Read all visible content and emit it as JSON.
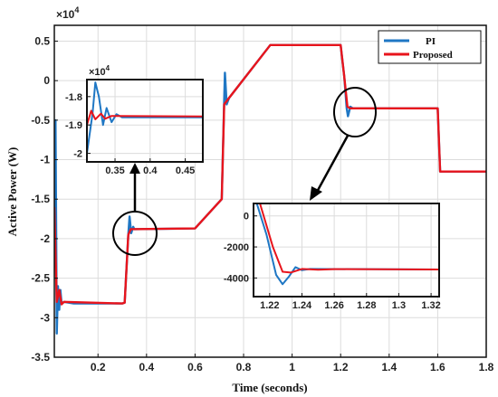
{
  "chart_data": [
    {
      "type": "line",
      "title": "",
      "xlabel": "Time (seconds)",
      "ylabel": "Active Power (W)",
      "y_multiplier": "×10",
      "y_multiplier_exp": "4",
      "xlim": [
        0.02,
        1.8
      ],
      "ylim": [
        -3.5,
        0.7
      ],
      "xticks": [
        0.2,
        0.4,
        0.6,
        0.8,
        1,
        1.2,
        1.4,
        1.6,
        1.8
      ],
      "xtick_labels": [
        "0.2",
        "0.4",
        "0.6",
        "0.8",
        "1",
        "1.2",
        "1.4",
        "1.6",
        "1.8"
      ],
      "yticks": [
        0.5,
        0,
        -0.5,
        -1,
        -1.5,
        -2,
        -2.5,
        -3,
        -3.5
      ],
      "ytick_labels": [
        "0.5",
        "0",
        "-0.5",
        "-1",
        "-1.5",
        "-2",
        "-2.5",
        "-3",
        "-3.5"
      ],
      "grid": true,
      "legend_position": "top-right",
      "series": [
        {
          "name": "PI",
          "color": "#1f77c4",
          "points": [
            [
              0.02,
              -2.2
            ],
            [
              0.025,
              -0.5
            ],
            [
              0.03,
              -3.2
            ],
            [
              0.035,
              -2.6
            ],
            [
              0.04,
              -2.9
            ],
            [
              0.045,
              -2.65
            ],
            [
              0.05,
              -2.82
            ],
            [
              0.06,
              -2.8
            ],
            [
              0.1,
              -2.82
            ],
            [
              0.2,
              -2.82
            ],
            [
              0.3,
              -2.82
            ],
            [
              0.31,
              -2.81
            ],
            [
              0.325,
              -1.95
            ],
            [
              0.33,
              -1.72
            ],
            [
              0.337,
              -1.93
            ],
            [
              0.345,
              -1.85
            ],
            [
              0.35,
              -1.88
            ],
            [
              0.6,
              -1.87
            ],
            [
              0.6,
              -1.87
            ],
            [
              0.71,
              -1.5
            ],
            [
              0.72,
              -0.25
            ],
            [
              0.723,
              0.1
            ],
            [
              0.73,
              -0.3
            ],
            [
              0.74,
              -0.22
            ],
            [
              0.91,
              0.45
            ],
            [
              1.2,
              0.45
            ],
            [
              1.215,
              0.05
            ],
            [
              1.225,
              -0.35
            ],
            [
              1.23,
              -0.45
            ],
            [
              1.24,
              -0.33
            ],
            [
              1.25,
              -0.35
            ],
            [
              1.6,
              -0.35
            ],
            [
              1.61,
              -1.15
            ],
            [
              1.8,
              -1.15
            ]
          ]
        },
        {
          "name": "Proposed",
          "color": "#e8141c",
          "points": [
            [
              0.02,
              -1.6
            ],
            [
              0.03,
              -2.8
            ],
            [
              0.04,
              -2.65
            ],
            [
              0.05,
              -2.83
            ],
            [
              0.06,
              -2.8
            ],
            [
              0.3,
              -2.82
            ],
            [
              0.31,
              -2.81
            ],
            [
              0.325,
              -1.95
            ],
            [
              0.335,
              -1.88
            ],
            [
              0.6,
              -1.87
            ],
            [
              0.6,
              -1.87
            ],
            [
              0.71,
              -1.5
            ],
            [
              0.72,
              -0.3
            ],
            [
              0.74,
              -0.22
            ],
            [
              0.91,
              0.45
            ],
            [
              1.2,
              0.45
            ],
            [
              1.215,
              0.05
            ],
            [
              1.228,
              -0.33
            ],
            [
              1.24,
              -0.35
            ],
            [
              1.6,
              -0.35
            ],
            [
              1.61,
              -1.15
            ],
            [
              1.8,
              -1.15
            ]
          ]
        }
      ]
    },
    {
      "type": "line",
      "title": "",
      "xlabel": "",
      "ylabel": "",
      "y_multiplier": "×10",
      "y_multiplier_exp": "4",
      "xlim": [
        0.31,
        0.475
      ],
      "ylim": [
        -2.03,
        -1.74
      ],
      "xticks": [
        0.35,
        0.4,
        0.45
      ],
      "xtick_labels": [
        "0.35",
        "0.4",
        "0.45"
      ],
      "yticks": [
        -1.8,
        -1.9,
        -2.0
      ],
      "ytick_labels": [
        "-1.8",
        "-1.9",
        "-2"
      ],
      "grid": true,
      "series": [
        {
          "name": "PI",
          "color": "#1f77c4",
          "points": [
            [
              0.31,
              -2.0
            ],
            [
              0.318,
              -1.86
            ],
            [
              0.322,
              -1.75
            ],
            [
              0.327,
              -1.8
            ],
            [
              0.333,
              -1.9
            ],
            [
              0.338,
              -1.84
            ],
            [
              0.345,
              -1.89
            ],
            [
              0.352,
              -1.862
            ],
            [
              0.36,
              -1.873
            ],
            [
              0.475,
              -1.873
            ]
          ]
        },
        {
          "name": "Proposed",
          "color": "#e8141c",
          "points": [
            [
              0.31,
              -1.9
            ],
            [
              0.316,
              -1.85
            ],
            [
              0.322,
              -1.88
            ],
            [
              0.33,
              -1.86
            ],
            [
              0.336,
              -1.878
            ],
            [
              0.345,
              -1.868
            ],
            [
              0.475,
              -1.87
            ]
          ]
        }
      ]
    },
    {
      "type": "line",
      "title": "",
      "xlabel": "",
      "ylabel": "",
      "xlim": [
        1.21,
        1.325
      ],
      "ylim": [
        -5200,
        800
      ],
      "xticks": [
        1.22,
        1.24,
        1.26,
        1.28,
        1.3,
        1.32
      ],
      "xtick_labels": [
        "1.22",
        "1.24",
        "1.26",
        "1.28",
        "1.3",
        "1.32"
      ],
      "yticks": [
        0,
        -2000,
        -4000
      ],
      "ytick_labels": [
        "0",
        "-2000",
        "-4000"
      ],
      "grid": true,
      "series": [
        {
          "name": "PI",
          "color": "#1f77c4",
          "points": [
            [
              1.212,
              800
            ],
            [
              1.218,
              -1200
            ],
            [
              1.224,
              -3800
            ],
            [
              1.228,
              -4400
            ],
            [
              1.232,
              -3900
            ],
            [
              1.236,
              -3300
            ],
            [
              1.24,
              -3500
            ],
            [
              1.245,
              -3420
            ],
            [
              1.325,
              -3450
            ]
          ]
        },
        {
          "name": "Proposed",
          "color": "#e8141c",
          "points": [
            [
              1.214,
              800
            ],
            [
              1.222,
              -2000
            ],
            [
              1.228,
              -3600
            ],
            [
              1.233,
              -3650
            ],
            [
              1.24,
              -3420
            ],
            [
              1.25,
              -3470
            ],
            [
              1.26,
              -3430
            ],
            [
              1.325,
              -3450
            ]
          ]
        }
      ]
    }
  ]
}
